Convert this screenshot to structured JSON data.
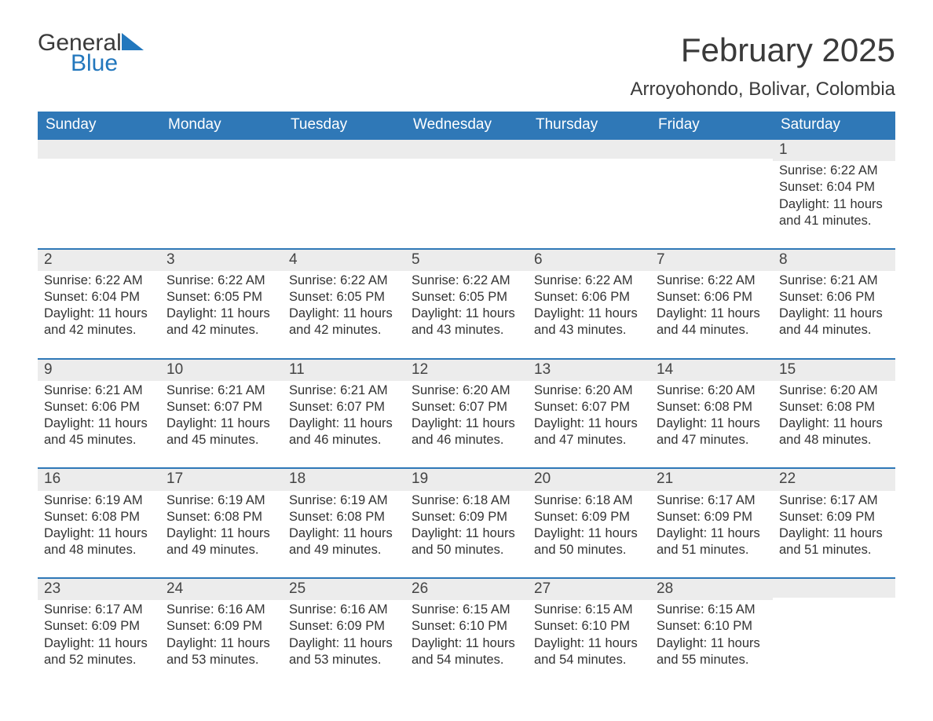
{
  "brand": {
    "word1": "General",
    "word2": "Blue"
  },
  "title": "February 2025",
  "subtitle": "Arroyohondo, Bolivar, Colombia",
  "colors": {
    "header_bg": "#2f78b7",
    "header_text": "#ffffff",
    "band_bg": "#ececec",
    "rule": "#2f78b7",
    "body_text": "#333333",
    "logo_blue": "#2277bd"
  },
  "days_of_week": [
    "Sunday",
    "Monday",
    "Tuesday",
    "Wednesday",
    "Thursday",
    "Friday",
    "Saturday"
  ],
  "weeks": [
    [
      null,
      null,
      null,
      null,
      null,
      null,
      {
        "n": "1",
        "sunrise": "Sunrise: 6:22 AM",
        "sunset": "Sunset: 6:04 PM",
        "daylight": "Daylight: 11 hours and 41 minutes."
      }
    ],
    [
      {
        "n": "2",
        "sunrise": "Sunrise: 6:22 AM",
        "sunset": "Sunset: 6:04 PM",
        "daylight": "Daylight: 11 hours and 42 minutes."
      },
      {
        "n": "3",
        "sunrise": "Sunrise: 6:22 AM",
        "sunset": "Sunset: 6:05 PM",
        "daylight": "Daylight: 11 hours and 42 minutes."
      },
      {
        "n": "4",
        "sunrise": "Sunrise: 6:22 AM",
        "sunset": "Sunset: 6:05 PM",
        "daylight": "Daylight: 11 hours and 42 minutes."
      },
      {
        "n": "5",
        "sunrise": "Sunrise: 6:22 AM",
        "sunset": "Sunset: 6:05 PM",
        "daylight": "Daylight: 11 hours and 43 minutes."
      },
      {
        "n": "6",
        "sunrise": "Sunrise: 6:22 AM",
        "sunset": "Sunset: 6:06 PM",
        "daylight": "Daylight: 11 hours and 43 minutes."
      },
      {
        "n": "7",
        "sunrise": "Sunrise: 6:22 AM",
        "sunset": "Sunset: 6:06 PM",
        "daylight": "Daylight: 11 hours and 44 minutes."
      },
      {
        "n": "8",
        "sunrise": "Sunrise: 6:21 AM",
        "sunset": "Sunset: 6:06 PM",
        "daylight": "Daylight: 11 hours and 44 minutes."
      }
    ],
    [
      {
        "n": "9",
        "sunrise": "Sunrise: 6:21 AM",
        "sunset": "Sunset: 6:06 PM",
        "daylight": "Daylight: 11 hours and 45 minutes."
      },
      {
        "n": "10",
        "sunrise": "Sunrise: 6:21 AM",
        "sunset": "Sunset: 6:07 PM",
        "daylight": "Daylight: 11 hours and 45 minutes."
      },
      {
        "n": "11",
        "sunrise": "Sunrise: 6:21 AM",
        "sunset": "Sunset: 6:07 PM",
        "daylight": "Daylight: 11 hours and 46 minutes."
      },
      {
        "n": "12",
        "sunrise": "Sunrise: 6:20 AM",
        "sunset": "Sunset: 6:07 PM",
        "daylight": "Daylight: 11 hours and 46 minutes."
      },
      {
        "n": "13",
        "sunrise": "Sunrise: 6:20 AM",
        "sunset": "Sunset: 6:07 PM",
        "daylight": "Daylight: 11 hours and 47 minutes."
      },
      {
        "n": "14",
        "sunrise": "Sunrise: 6:20 AM",
        "sunset": "Sunset: 6:08 PM",
        "daylight": "Daylight: 11 hours and 47 minutes."
      },
      {
        "n": "15",
        "sunrise": "Sunrise: 6:20 AM",
        "sunset": "Sunset: 6:08 PM",
        "daylight": "Daylight: 11 hours and 48 minutes."
      }
    ],
    [
      {
        "n": "16",
        "sunrise": "Sunrise: 6:19 AM",
        "sunset": "Sunset: 6:08 PM",
        "daylight": "Daylight: 11 hours and 48 minutes."
      },
      {
        "n": "17",
        "sunrise": "Sunrise: 6:19 AM",
        "sunset": "Sunset: 6:08 PM",
        "daylight": "Daylight: 11 hours and 49 minutes."
      },
      {
        "n": "18",
        "sunrise": "Sunrise: 6:19 AM",
        "sunset": "Sunset: 6:08 PM",
        "daylight": "Daylight: 11 hours and 49 minutes."
      },
      {
        "n": "19",
        "sunrise": "Sunrise: 6:18 AM",
        "sunset": "Sunset: 6:09 PM",
        "daylight": "Daylight: 11 hours and 50 minutes."
      },
      {
        "n": "20",
        "sunrise": "Sunrise: 6:18 AM",
        "sunset": "Sunset: 6:09 PM",
        "daylight": "Daylight: 11 hours and 50 minutes."
      },
      {
        "n": "21",
        "sunrise": "Sunrise: 6:17 AM",
        "sunset": "Sunset: 6:09 PM",
        "daylight": "Daylight: 11 hours and 51 minutes."
      },
      {
        "n": "22",
        "sunrise": "Sunrise: 6:17 AM",
        "sunset": "Sunset: 6:09 PM",
        "daylight": "Daylight: 11 hours and 51 minutes."
      }
    ],
    [
      {
        "n": "23",
        "sunrise": "Sunrise: 6:17 AM",
        "sunset": "Sunset: 6:09 PM",
        "daylight": "Daylight: 11 hours and 52 minutes."
      },
      {
        "n": "24",
        "sunrise": "Sunrise: 6:16 AM",
        "sunset": "Sunset: 6:09 PM",
        "daylight": "Daylight: 11 hours and 53 minutes."
      },
      {
        "n": "25",
        "sunrise": "Sunrise: 6:16 AM",
        "sunset": "Sunset: 6:09 PM",
        "daylight": "Daylight: 11 hours and 53 minutes."
      },
      {
        "n": "26",
        "sunrise": "Sunrise: 6:15 AM",
        "sunset": "Sunset: 6:10 PM",
        "daylight": "Daylight: 11 hours and 54 minutes."
      },
      {
        "n": "27",
        "sunrise": "Sunrise: 6:15 AM",
        "sunset": "Sunset: 6:10 PM",
        "daylight": "Daylight: 11 hours and 54 minutes."
      },
      {
        "n": "28",
        "sunrise": "Sunrise: 6:15 AM",
        "sunset": "Sunset: 6:10 PM",
        "daylight": "Daylight: 11 hours and 55 minutes."
      },
      null
    ]
  ]
}
